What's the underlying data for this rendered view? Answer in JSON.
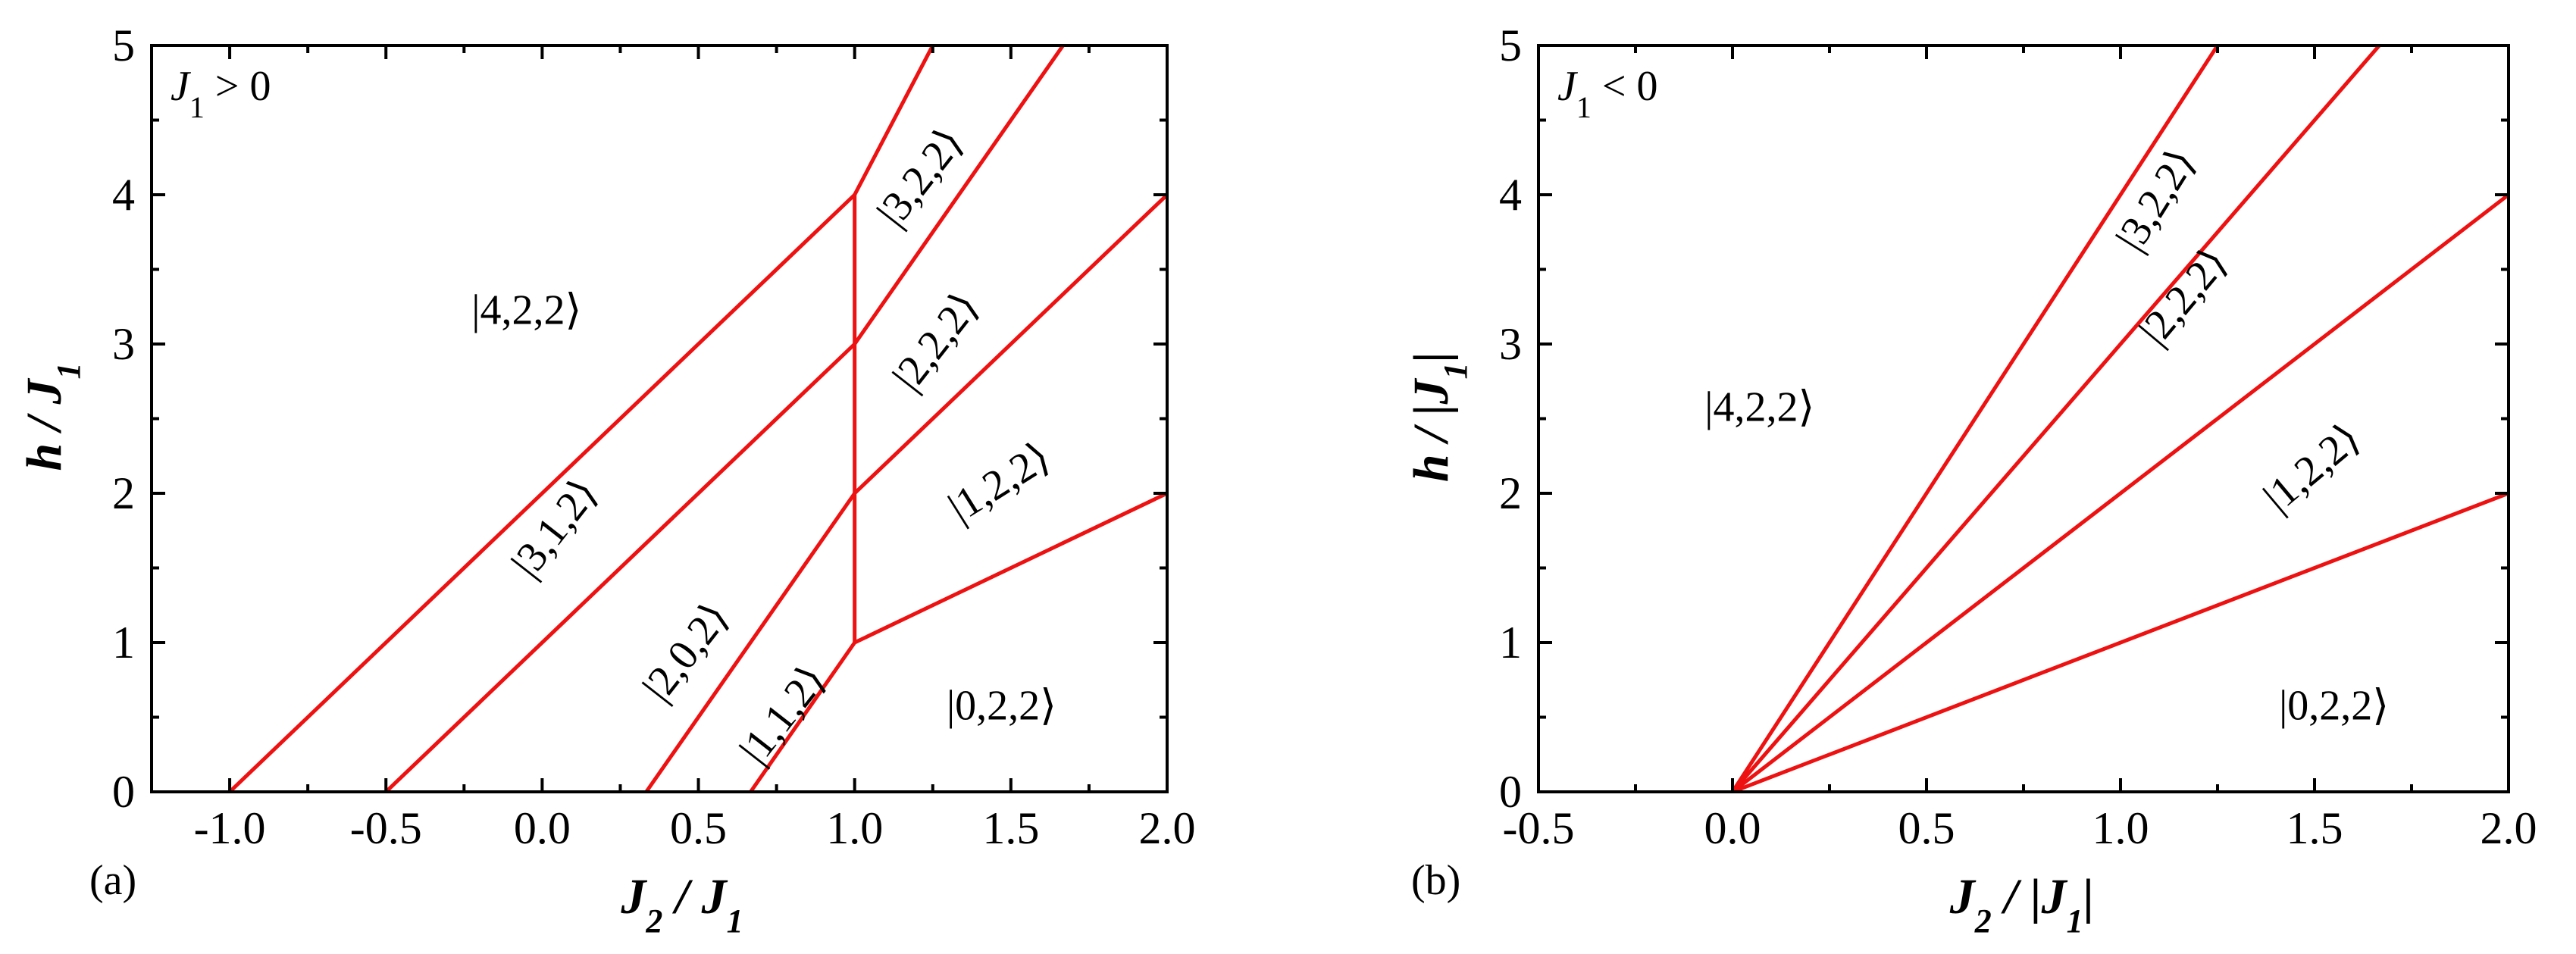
{
  "chart_data": [
    {
      "type": "line",
      "panel": "(a)",
      "condition": {
        "main": "J",
        "sub": "1",
        "rest": " > 0"
      },
      "xlabel": {
        "main": "J",
        "sub": "2",
        "mid": " / J",
        "sub2": "1",
        "tail": ""
      },
      "ylabel": {
        "main": "h / J",
        "sub": "1",
        "tail": ""
      },
      "xlim": [
        -1.25,
        2.0
      ],
      "ylim": [
        0,
        5
      ],
      "xticks": [
        -1.0,
        -0.5,
        0.0,
        0.5,
        1.0,
        1.5,
        2.0
      ],
      "xtick_labels": [
        "-1.0",
        "-0.5",
        "0.0",
        "0.5",
        "1.0",
        "1.5",
        "2.0"
      ],
      "yticks": [
        0,
        1,
        2,
        3,
        4,
        5
      ],
      "ytick_labels": [
        "0",
        "1",
        "2",
        "3",
        "4",
        "5"
      ],
      "line_color": "#ee1111",
      "series": [
        {
          "name": "boundary-4-3",
          "x": [
            -1.0,
            1.0
          ],
          "y": [
            0,
            4
          ]
        },
        {
          "name": "boundary-3-2",
          "x": [
            -0.5,
            1.0
          ],
          "y": [
            0,
            3
          ]
        },
        {
          "name": "boundary-2-1",
          "x": [
            0.333,
            1.0
          ],
          "y": [
            0,
            2
          ]
        },
        {
          "name": "boundary-1-0",
          "x": [
            0.667,
            1.0
          ],
          "y": [
            0,
            1
          ]
        },
        {
          "name": "boundary-vertical",
          "x": [
            1.0,
            1.0
          ],
          "y": [
            1,
            4
          ]
        },
        {
          "name": "boundary-upper-1",
          "x": [
            1.0,
            1.25
          ],
          "y": [
            4,
            5
          ]
        },
        {
          "name": "boundary-upper-2",
          "x": [
            1.0,
            1.667
          ],
          "y": [
            3,
            5
          ]
        },
        {
          "name": "boundary-upper-3",
          "x": [
            1.0,
            2.0
          ],
          "y": [
            2,
            4
          ]
        },
        {
          "name": "boundary-upper-4",
          "x": [
            1.0,
            2.0
          ],
          "y": [
            1,
            2
          ]
        }
      ],
      "annotations": [
        {
          "text": "|4,2,2⟩",
          "x": -0.05,
          "y": 3.2,
          "rotate": 0
        },
        {
          "text": "|3,1,2⟩",
          "x": 0.05,
          "y": 1.75,
          "rotate": -52
        },
        {
          "text": "|2,0,2⟩",
          "x": 0.47,
          "y": 0.92,
          "rotate": -52
        },
        {
          "text": "|1,1,2⟩",
          "x": 0.78,
          "y": 0.5,
          "rotate": -52
        },
        {
          "text": "|3,2,2⟩",
          "x": 1.22,
          "y": 4.1,
          "rotate": -52
        },
        {
          "text": "|2,2,2⟩",
          "x": 1.27,
          "y": 3.0,
          "rotate": -52
        },
        {
          "text": "|1,2,2⟩",
          "x": 1.47,
          "y": 2.05,
          "rotate": -32
        },
        {
          "text": "|0,2,2⟩",
          "x": 1.47,
          "y": 0.55,
          "rotate": 0
        }
      ]
    },
    {
      "type": "line",
      "panel": "(b)",
      "condition": {
        "main": "J",
        "sub": "1",
        "rest": " < 0"
      },
      "xlabel": {
        "main": "J",
        "sub": "2",
        "mid": " / |J",
        "sub2": "1",
        "tail": "|"
      },
      "ylabel": {
        "main": "h / |J",
        "sub": "1",
        "tail": "|"
      },
      "xlim": [
        -0.5,
        2.0
      ],
      "ylim": [
        0,
        5
      ],
      "xticks": [
        -0.5,
        0.0,
        0.5,
        1.0,
        1.5,
        2.0
      ],
      "xtick_labels": [
        "-0.5",
        "0.0",
        "0.5",
        "1.0",
        "1.5",
        "2.0"
      ],
      "yticks": [
        0,
        1,
        2,
        3,
        4,
        5
      ],
      "ytick_labels": [
        "0",
        "1",
        "2",
        "3",
        "4",
        "5"
      ],
      "line_color": "#ee1111",
      "series": [
        {
          "name": "boundary-4-3",
          "x": [
            0,
            1.25
          ],
          "y": [
            0,
            5
          ]
        },
        {
          "name": "boundary-3-2",
          "x": [
            0,
            1.667
          ],
          "y": [
            0,
            5
          ]
        },
        {
          "name": "boundary-2-1",
          "x": [
            0,
            2.0
          ],
          "y": [
            0,
            4
          ]
        },
        {
          "name": "boundary-1-0",
          "x": [
            0,
            2.0
          ],
          "y": [
            0,
            2
          ]
        }
      ],
      "annotations": [
        {
          "text": "|4,2,2⟩",
          "x": 0.07,
          "y": 2.55,
          "rotate": 0
        },
        {
          "text": "|3,2,2⟩",
          "x": 1.1,
          "y": 3.95,
          "rotate": -58
        },
        {
          "text": "|2,2,2⟩",
          "x": 1.17,
          "y": 3.3,
          "rotate": -50
        },
        {
          "text": "|1,2,2⟩",
          "x": 1.5,
          "y": 2.15,
          "rotate": -40
        },
        {
          "text": "|0,2,2⟩",
          "x": 1.55,
          "y": 0.55,
          "rotate": 0
        }
      ]
    }
  ]
}
